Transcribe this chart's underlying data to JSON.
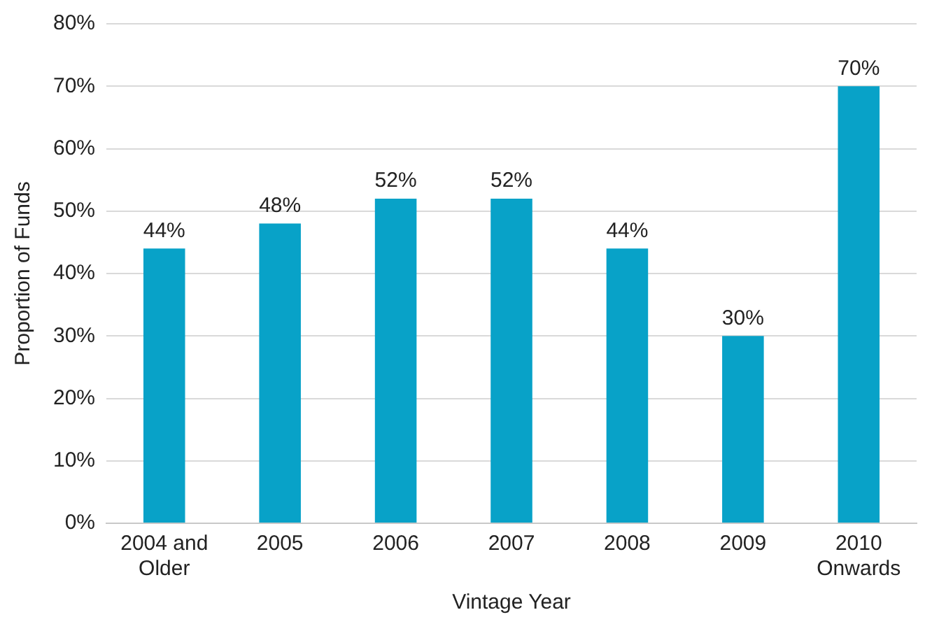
{
  "chart_data": {
    "type": "bar",
    "xlabel": "Vintage Year",
    "ylabel": "Proportion of Funds",
    "categories": [
      "2004 and Older",
      "2005",
      "2006",
      "2007",
      "2008",
      "2009",
      "2010 Onwards"
    ],
    "values": [
      44,
      48,
      52,
      52,
      44,
      30,
      70
    ],
    "value_labels": [
      "44%",
      "48%",
      "52%",
      "52%",
      "44%",
      "30%",
      "70%"
    ],
    "color": "#08a2c8",
    "ylim": [
      0,
      80
    ],
    "yticks": [
      {
        "value": 0,
        "label": "0%"
      },
      {
        "value": 10,
        "label": "10%"
      },
      {
        "value": 20,
        "label": "20%"
      },
      {
        "value": 30,
        "label": "30%"
      },
      {
        "value": 40,
        "label": "40%"
      },
      {
        "value": 50,
        "label": "50%"
      },
      {
        "value": 60,
        "label": "60%"
      },
      {
        "value": 70,
        "label": "70%"
      },
      {
        "value": 80,
        "label": "80%"
      }
    ],
    "grid": "y",
    "legend": false
  }
}
